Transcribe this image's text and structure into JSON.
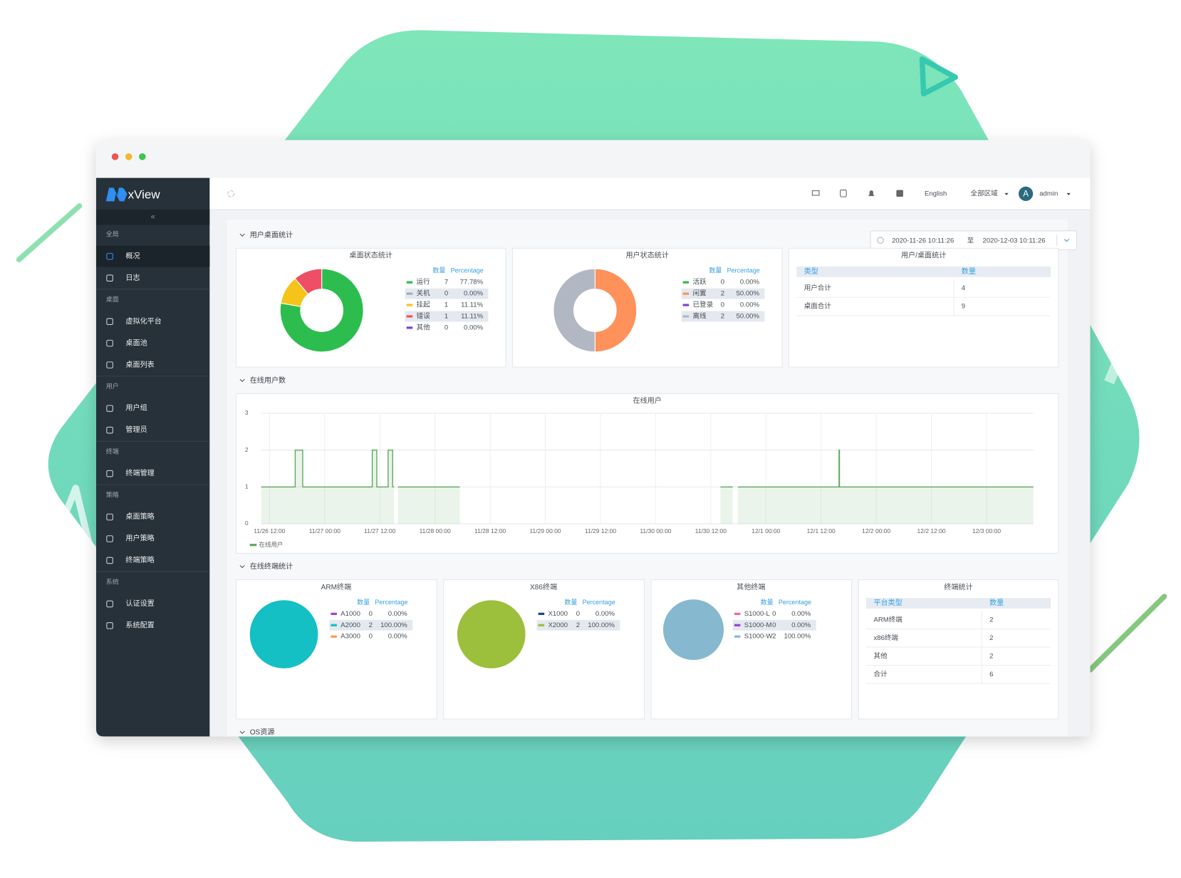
{
  "sidebar": {
    "logo": "xView",
    "sections": [
      {
        "title": "全局",
        "items": [
          "概况",
          "日志"
        ]
      },
      {
        "title": "桌面",
        "items": [
          "虚拟化平台",
          "桌面池",
          "桌面列表"
        ]
      },
      {
        "title": "用户",
        "items": [
          "用户组",
          "管理员"
        ]
      },
      {
        "title": "终端",
        "items": [
          "终端管理"
        ]
      },
      {
        "title": "策略",
        "items": [
          "桌面策略",
          "用户策略",
          "终端策略"
        ]
      },
      {
        "title": "系统",
        "items": [
          "认证设置",
          "系统配置"
        ]
      }
    ]
  },
  "topbar": {
    "language": "English",
    "region": "全部区域",
    "avatar": "A",
    "user": "admin"
  },
  "date_range": {
    "start": "2020-11-26 10:11:26",
    "separator": "至",
    "end": "2020-12-03 10:11:26"
  },
  "sections": [
    "用户桌面统计",
    "在线用户数",
    "在线终端统计",
    "OS资源"
  ],
  "tables": [
    {
      "title": "用户/桌面统计",
      "headers": [
        "类型",
        "数量"
      ],
      "rows": [
        [
          "用户合计",
          "4"
        ],
        [
          "桌面合计",
          "9"
        ]
      ]
    },
    {
      "title": "终端统计",
      "headers": [
        "平台类型",
        "数量"
      ],
      "rows": [
        [
          "ARM终端",
          "2"
        ],
        [
          "x86终端",
          "2"
        ],
        [
          "其他",
          "2"
        ],
        [
          "合计",
          "6"
        ]
      ]
    }
  ],
  "chart_data": [
    {
      "type": "donut",
      "title": "桌面状态统计",
      "legend_headers": [
        "数量",
        "Percentage"
      ],
      "categories": [
        "运行",
        "关机",
        "挂起",
        "错误",
        "其他"
      ],
      "values": [
        7,
        0,
        1,
        1,
        0
      ],
      "percent_labels": [
        "77.78%",
        "0.00%",
        "11.11%",
        "11.11%",
        "0.00%"
      ],
      "colors": [
        "#2dbd4e",
        "#a3abbb",
        "#f5c41b",
        "#ef4f66",
        "#7d3fd8"
      ]
    },
    {
      "type": "donut",
      "title": "用户状态统计",
      "legend_headers": [
        "数量",
        "Percentage"
      ],
      "categories": [
        "活跃",
        "闲置",
        "已登录",
        "离线"
      ],
      "values": [
        0,
        2,
        0,
        2
      ],
      "percent_labels": [
        "0.00%",
        "50.00%",
        "0.00%",
        "50.00%"
      ],
      "colors": [
        "#2dbd4e",
        "#ff915a",
        "#7d3fd8",
        "#b2b7c4"
      ]
    },
    {
      "type": "line",
      "title": "在线用户",
      "x": [
        "11/26 10:11",
        "11/26 17:35",
        "11/26 17:35",
        "11/26 19:13",
        "11/26 19:13",
        "11/27 10:21",
        "11/27 10:21",
        "11/27 11:20",
        "11/27 11:20",
        "11/27 13:48",
        "11/27 13:48",
        "11/27 14:47",
        "11/27 14:47",
        "11/27 15:06",
        "11/27 15:30",
        "11/27 15:56",
        "11/28 05:24",
        "11/28 12:00",
        "11/30 14:06",
        "11/30 16:46",
        "11/30 17:20",
        "11/30 17:54",
        "12/1 15:54",
        "12/1 15:54",
        "12/1 16:00",
        "12/1 16:00",
        "12/3 10:11"
      ],
      "series": [
        {
          "name": "在线用户",
          "color": "#5ea85e",
          "values": [
            1,
            1,
            2,
            2,
            1,
            1,
            2,
            2,
            1,
            1,
            2,
            2,
            1,
            1,
            null,
            1,
            1,
            null,
            1,
            1,
            null,
            1,
            1,
            2,
            2,
            1,
            1
          ]
        }
      ],
      "xlim": [
        "11/26 10:11",
        "12/3 10:11"
      ],
      "xticks": [
        "11/26 12:00",
        "11/27 00:00",
        "11/27 12:00",
        "11/28 00:00",
        "11/28 12:00",
        "11/29 00:00",
        "11/29 12:00",
        "11/30 00:00",
        "11/30 12:00",
        "12/1 00:00",
        "12/1 12:00",
        "12/2 00:00",
        "12/2 12:00",
        "12/3 00:00"
      ],
      "ylim": [
        0,
        3
      ],
      "yticks": [
        0,
        1,
        2,
        3
      ],
      "grid": true
    },
    {
      "type": "pie",
      "title": "ARM终端",
      "legend_headers": [
        "数量",
        "Percentage"
      ],
      "categories": [
        "A1000",
        "A2000",
        "A3000"
      ],
      "values": [
        0,
        2,
        0
      ],
      "percent_labels": [
        "0.00%",
        "100.00%",
        "0.00%"
      ],
      "colors": [
        "#9b3fd8",
        "#14c0c4",
        "#ff9a4a"
      ]
    },
    {
      "type": "pie",
      "title": "X86终端",
      "legend_headers": [
        "数量",
        "Percentage"
      ],
      "categories": [
        "X1000",
        "X2000"
      ],
      "values": [
        0,
        2
      ],
      "percent_labels": [
        "0.00%",
        "100.00%"
      ],
      "colors": [
        "#1d3f8f",
        "#9cbf3c"
      ]
    },
    {
      "type": "pie",
      "title": "其他终端",
      "legend_headers": [
        "数量",
        "Percentage"
      ],
      "categories": [
        "S1000-L",
        "S1000-M",
        "S1000-W"
      ],
      "values": [
        0,
        0,
        2
      ],
      "percent_labels": [
        "0.00%",
        "0.00%",
        "100.00%"
      ],
      "colors": [
        "#f06a9a",
        "#9b3fd8",
        "#86b9cf"
      ]
    }
  ]
}
